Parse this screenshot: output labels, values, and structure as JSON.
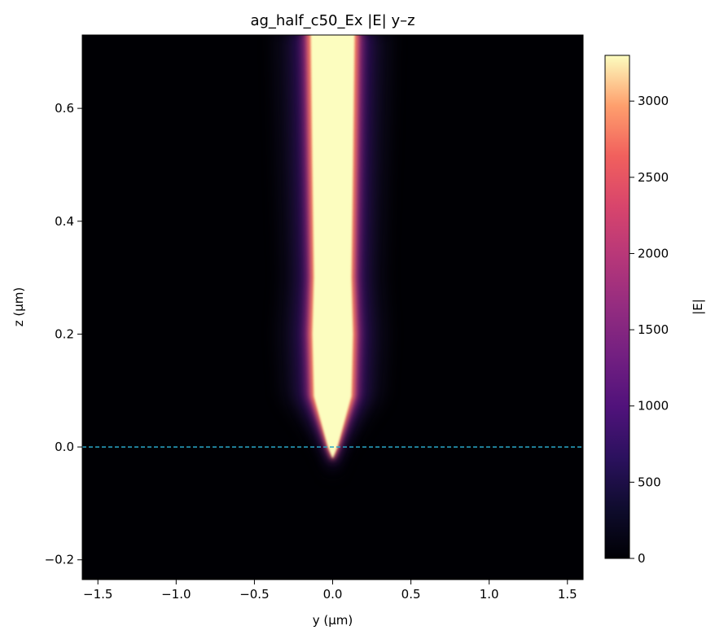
{
  "chart_data": {
    "type": "heatmap",
    "title": "ag_half_c50_Ex |E| y–z",
    "xlabel": "y (µm)",
    "ylabel": "z (µm)",
    "colorbar_label": "|E|",
    "colormap": "magma",
    "xlim": [
      -1.6,
      1.6
    ],
    "ylim": [
      -0.235,
      0.73
    ],
    "clim": [
      0,
      3300
    ],
    "x_ticks": [
      {
        "value": -1.5,
        "label": "−1.5"
      },
      {
        "value": -1.0,
        "label": "−1.0"
      },
      {
        "value": -0.5,
        "label": "−0.5"
      },
      {
        "value": 0.0,
        "label": "0.0"
      },
      {
        "value": 0.5,
        "label": "0.5"
      },
      {
        "value": 1.0,
        "label": "1.0"
      },
      {
        "value": 1.5,
        "label": "1.5"
      }
    ],
    "y_ticks": [
      {
        "value": -0.2,
        "label": "−0.2"
      },
      {
        "value": 0.0,
        "label": "0.0"
      },
      {
        "value": 0.2,
        "label": "0.2"
      },
      {
        "value": 0.4,
        "label": "0.4"
      },
      {
        "value": 0.6,
        "label": "0.6"
      }
    ],
    "colorbar_ticks": [
      {
        "value": 0,
        "label": "0"
      },
      {
        "value": 500,
        "label": "500"
      },
      {
        "value": 1000,
        "label": "1000"
      },
      {
        "value": 1500,
        "label": "1500"
      },
      {
        "value": 2000,
        "label": "2000"
      },
      {
        "value": 2500,
        "label": "2500"
      },
      {
        "value": 3000,
        "label": "3000"
      }
    ],
    "reference_line": {
      "axis": "z",
      "value": 0.0,
      "style": "dashed",
      "color": "#2aa6c8"
    },
    "field_profile": {
      "description_points": [
        {
          "z": 0.0,
          "half_width": 0.03
        },
        {
          "z": 0.05,
          "half_width": 0.08
        },
        {
          "z": 0.09,
          "half_width": 0.12
        },
        {
          "z": 0.2,
          "half_width": 0.13
        },
        {
          "z": 0.3,
          "half_width": 0.12
        },
        {
          "z": 0.5,
          "half_width": 0.13
        },
        {
          "z": 0.73,
          "half_width": 0.14
        }
      ],
      "center_y": [
        {
          "z": 0.0,
          "y": 0.0
        },
        {
          "z": 0.3,
          "y": 0.01
        },
        {
          "z": 0.73,
          "y": 0.0
        }
      ],
      "peak_value": 3300
    }
  },
  "colors": {
    "plot_frame": "#000000",
    "background": "#ffffff"
  }
}
